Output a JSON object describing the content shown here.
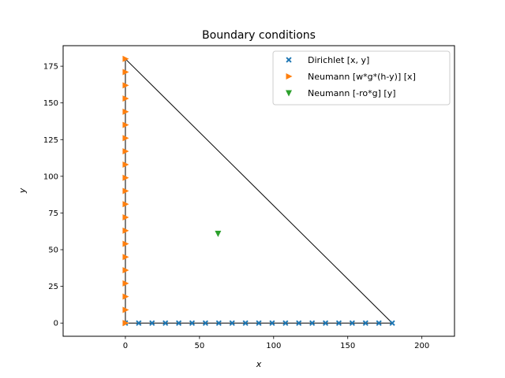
{
  "chart_data": {
    "type": "scatter",
    "title": "Boundary conditions",
    "xlabel": "x",
    "ylabel": "y",
    "xlim": [
      -42,
      222
    ],
    "ylim": [
      -9,
      189
    ],
    "xticks": [
      0,
      50,
      100,
      150,
      200
    ],
    "yticks": [
      0,
      25,
      50,
      75,
      100,
      125,
      150,
      175
    ],
    "grid": false,
    "legend_position": "top-right",
    "outline": [
      [
        0,
        0
      ],
      [
        180,
        0
      ],
      [
        0,
        180
      ],
      [
        0,
        0
      ]
    ],
    "series": [
      {
        "name": "Dirichlet  [x, y]",
        "marker": "x-filled",
        "color": "#1f77b4",
        "x": [
          0,
          9,
          18,
          27,
          36,
          45,
          54,
          63,
          72,
          81,
          90,
          99,
          108,
          117,
          126,
          135,
          144,
          153,
          162,
          171,
          180
        ],
        "y": [
          0,
          0,
          0,
          0,
          0,
          0,
          0,
          0,
          0,
          0,
          0,
          0,
          0,
          0,
          0,
          0,
          0,
          0,
          0,
          0,
          0
        ]
      },
      {
        "name": "Neumann [w*g*(h-y)] [x]",
        "marker": "triangle-right",
        "color": "#ff7f0e",
        "x": [
          0,
          0,
          0,
          0,
          0,
          0,
          0,
          0,
          0,
          0,
          0,
          0,
          0,
          0,
          0,
          0,
          0,
          0,
          0,
          0,
          0
        ],
        "y": [
          0,
          9,
          18,
          27,
          36,
          45,
          54,
          63,
          72,
          81,
          90,
          99,
          108,
          117,
          126,
          135,
          144,
          153,
          162,
          171,
          180
        ]
      },
      {
        "name": "Neumann [-ro*g] [y]",
        "marker": "triangle-down",
        "color": "#2ca02c",
        "x": [
          62.5
        ],
        "y": [
          61
        ]
      }
    ]
  }
}
